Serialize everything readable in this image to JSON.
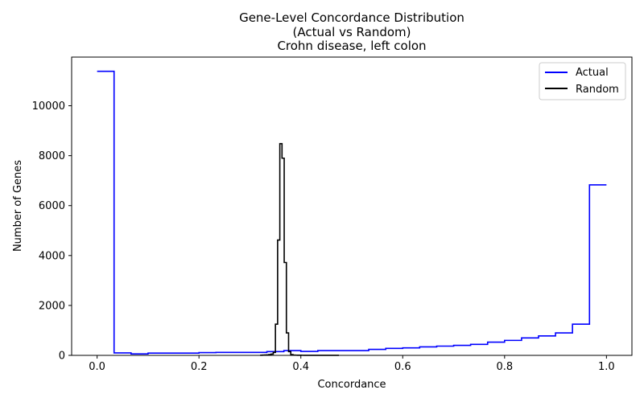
{
  "chart_data": {
    "type": "line",
    "title": "Gene-Level Concordance Distribution",
    "subtitle_lines": [
      "(Actual vs Random)",
      "Crohn disease, left colon"
    ],
    "xlabel": "Concordance",
    "ylabel": "Number of Genes",
    "xlim": [
      -0.05,
      1.05
    ],
    "ylim": [
      0,
      11950
    ],
    "xticks": [
      0.0,
      0.2,
      0.4,
      0.6,
      0.8,
      1.0
    ],
    "xtick_labels": [
      "0.0",
      "0.2",
      "0.4",
      "0.6",
      "0.8",
      "1.0"
    ],
    "yticks": [
      0,
      2000,
      4000,
      6000,
      8000,
      10000
    ],
    "ytick_labels": [
      "0",
      "2000",
      "4000",
      "6000",
      "8000",
      "10000"
    ],
    "grid": false,
    "legend_position": "top-right",
    "style": "step",
    "series": [
      {
        "name": "Actual",
        "color": "#0000ff",
        "bin_edges": [
          0.0,
          0.0333,
          0.0667,
          0.1,
          0.1333,
          0.1667,
          0.2,
          0.2333,
          0.2667,
          0.3,
          0.3333,
          0.3667,
          0.4,
          0.4333,
          0.4667,
          0.5,
          0.5333,
          0.5667,
          0.6,
          0.6333,
          0.6667,
          0.7,
          0.7333,
          0.7667,
          0.8,
          0.8333,
          0.8667,
          0.9,
          0.9333,
          0.9667,
          1.0
        ],
        "counts": [
          11380,
          100,
          60,
          90,
          90,
          90,
          110,
          120,
          120,
          120,
          150,
          190,
          160,
          190,
          190,
          190,
          240,
          280,
          300,
          340,
          370,
          400,
          440,
          530,
          600,
          700,
          780,
          900,
          1250,
          6830
        ]
      },
      {
        "name": "Random",
        "color": "#000000",
        "bin_edges": [
          0.32,
          0.3243,
          0.3286,
          0.3329,
          0.3372,
          0.3415,
          0.3458,
          0.3501,
          0.3544,
          0.3587,
          0.363,
          0.3673,
          0.3716,
          0.3759,
          0.3802,
          0.3845,
          0.3888,
          0.3931,
          0.3974,
          0.4017,
          0.406,
          0.4103,
          0.4146,
          0.4189,
          0.4232,
          0.4275,
          0.4318,
          0.4361,
          0.4404,
          0.4447,
          0.449,
          0.4533,
          0.4576,
          0.4619,
          0.4662,
          0.4705,
          0.4748
        ],
        "counts": [
          5,
          10,
          15,
          20,
          30,
          50,
          120,
          1250,
          4620,
          8480,
          7900,
          3720,
          900,
          150,
          30,
          10,
          8,
          6,
          5,
          4,
          3,
          3,
          2,
          2,
          2,
          1,
          1,
          1,
          1,
          1,
          1,
          1,
          1,
          1,
          1,
          1
        ]
      }
    ]
  }
}
